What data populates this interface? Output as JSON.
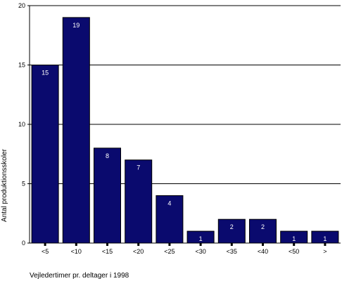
{
  "chart_data": {
    "type": "bar",
    "title": "",
    "xlabel": "Vejledertimer pr. deltager i 1998",
    "ylabel": "Antal produktionsskoler",
    "categories": [
      "<5",
      "<10",
      "<15",
      "<20",
      "<25",
      "<30",
      "<35",
      "<40",
      "<50",
      ">"
    ],
    "values": [
      15,
      19,
      8,
      7,
      4,
      1,
      2,
      2,
      1,
      1
    ],
    "data_labels": [
      "15",
      "19",
      "8",
      "7",
      "4",
      "1",
      "2",
      "2",
      "1",
      "1"
    ],
    "ylim": [
      0,
      20
    ],
    "yticks": [
      0,
      5,
      10,
      15,
      20
    ],
    "ytick_labels": [
      "0",
      "5",
      "10",
      "15",
      "20"
    ],
    "grid": true,
    "bar_color": "#0a0a6e"
  }
}
